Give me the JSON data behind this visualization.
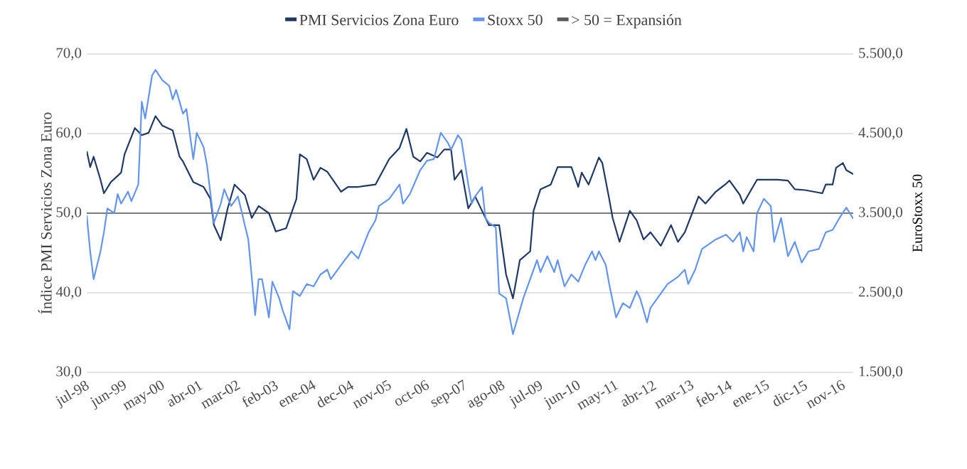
{
  "chart_data": {
    "type": "line",
    "ylabel": "Índice PMI Servicios Zona Euro",
    "y2label": "EuroStoxx 50",
    "xlim": [
      "1998-07",
      "2017-02"
    ],
    "xticks": [
      {
        "value": "1998-07",
        "label": "jul-98"
      },
      {
        "value": "1999-06",
        "label": "jun-99"
      },
      {
        "value": "2000-05",
        "label": "may-00"
      },
      {
        "value": "2001-04",
        "label": "abr-01"
      },
      {
        "value": "2002-03",
        "label": "mar-02"
      },
      {
        "value": "2003-02",
        "label": "feb-03"
      },
      {
        "value": "2004-01",
        "label": "ene-04"
      },
      {
        "value": "2004-12",
        "label": "dec-04"
      },
      {
        "value": "2005-11",
        "label": "nov-05"
      },
      {
        "value": "2006-10",
        "label": "oct-06"
      },
      {
        "value": "2007-09",
        "label": "sep-07"
      },
      {
        "value": "2008-08",
        "label": "ago-08"
      },
      {
        "value": "2009-07",
        "label": "jul-09"
      },
      {
        "value": "2010-06",
        "label": "jun-10"
      },
      {
        "value": "2011-05",
        "label": "may-11"
      },
      {
        "value": "2012-04",
        "label": "abr-12"
      },
      {
        "value": "2013-03",
        "label": "mar-13"
      },
      {
        "value": "2014-02",
        "label": "feb-14"
      },
      {
        "value": "2015-01",
        "label": "ene-15"
      },
      {
        "value": "2015-12",
        "label": "dic-15"
      },
      {
        "value": "2016-11",
        "label": "nov-16"
      }
    ],
    "ylim": [
      30,
      70
    ],
    "yticks": [
      {
        "value": 30,
        "label": "30,0"
      },
      {
        "value": 40,
        "label": "40,0"
      },
      {
        "value": 50,
        "label": "50,0"
      },
      {
        "value": 60,
        "label": "60,0"
      },
      {
        "value": 70,
        "label": "70,0"
      }
    ],
    "y2lim": [
      1500,
      5500
    ],
    "y2ticks": [
      {
        "value": 1500,
        "label": "1.500,0"
      },
      {
        "value": 2500,
        "label": "2.500,0"
      },
      {
        "value": 3500,
        "label": "3.500,0"
      },
      {
        "value": 4500,
        "label": "4.500,0"
      },
      {
        "value": 5500,
        "label": "5.500,0"
      }
    ],
    "grid": "y",
    "legend": "top",
    "ref_lines": [
      {
        "axis": "y",
        "value": 50,
        "label": "> 50 = Expansión",
        "color": "#595959"
      }
    ],
    "series": [
      {
        "name": "PMI Servicios Zona Euro",
        "color": "#203864",
        "x": [
          "1998-07",
          "1998-08",
          "1998-09",
          "1998-11",
          "1998-12",
          "1999-02",
          "1999-05",
          "1999-06",
          "1999-09",
          "1999-11",
          "2000-01",
          "2000-03",
          "2000-05",
          "2000-08",
          "2000-10",
          "2000-11",
          "2001-02",
          "2001-05",
          "2001-07",
          "2001-08",
          "2001-10",
          "2001-12",
          "2002-02",
          "2002-05",
          "2002-07",
          "2002-09",
          "2002-12",
          "2003-02",
          "2003-05",
          "2003-08",
          "2003-09",
          "2003-11",
          "2004-01",
          "2004-03",
          "2004-05",
          "2004-09",
          "2004-11",
          "2005-02",
          "2005-07",
          "2005-11",
          "2006-02",
          "2006-04",
          "2006-06",
          "2006-08",
          "2006-10",
          "2007-01",
          "2007-03",
          "2007-05",
          "2007-06",
          "2007-08",
          "2007-10",
          "2007-12",
          "2008-02",
          "2008-04",
          "2008-07",
          "2008-09",
          "2008-11",
          "2009-01",
          "2009-04",
          "2009-05",
          "2009-07",
          "2009-10",
          "2009-12",
          "2010-04",
          "2010-06",
          "2010-07",
          "2010-09",
          "2010-12",
          "2011-01",
          "2011-03",
          "2011-04",
          "2011-06",
          "2011-09",
          "2011-11",
          "2012-01",
          "2012-03",
          "2012-06",
          "2012-09",
          "2012-11",
          "2013-01",
          "2013-05",
          "2013-07",
          "2013-10",
          "2014-01",
          "2014-02",
          "2014-05",
          "2014-06",
          "2014-10",
          "2015-01",
          "2015-04",
          "2015-07",
          "2015-09",
          "2015-12",
          "2016-05",
          "2016-06",
          "2016-08",
          "2016-09",
          "2016-11",
          "2016-12",
          "2017-02"
        ],
        "values": [
          57.8,
          55.8,
          57.1,
          54.2,
          52.5,
          53.9,
          55.1,
          57.4,
          60.7,
          59.8,
          60.1,
          62.2,
          61.0,
          60.4,
          57.1,
          56.5,
          53.9,
          53.3,
          51.8,
          48.5,
          46.6,
          50.6,
          53.6,
          52.3,
          49.4,
          50.9,
          50.0,
          47.7,
          48.1,
          51.8,
          57.4,
          56.8,
          54.2,
          55.7,
          55.2,
          52.7,
          53.3,
          53.3,
          53.6,
          56.8,
          58.2,
          60.6,
          57.1,
          56.5,
          57.6,
          57.0,
          58.0,
          58.0,
          54.2,
          55.4,
          50.6,
          52.1,
          50.3,
          48.5,
          48.5,
          42.3,
          39.3,
          44.1,
          45.2,
          50.3,
          53.0,
          53.6,
          55.8,
          55.8,
          53.3,
          55.1,
          53.6,
          57.0,
          56.3,
          51.8,
          49.4,
          46.4,
          50.3,
          49.1,
          46.7,
          47.6,
          45.9,
          48.5,
          46.4,
          47.6,
          52.1,
          51.2,
          52.7,
          53.7,
          54.1,
          52.3,
          51.2,
          54.2,
          54.2,
          54.2,
          54.1,
          53.0,
          52.9,
          52.5,
          53.6,
          53.6,
          55.7,
          56.3,
          55.4,
          54.9
        ]
      },
      {
        "name": "Stoxx 50",
        "color": "#6495ed",
        "axis": "y2",
        "x": [
          "1998-07",
          "1998-08",
          "1998-09",
          "1998-11",
          "1998-12",
          "1999-01",
          "1999-03",
          "1999-04",
          "1999-05",
          "1999-07",
          "1999-08",
          "1999-10",
          "1999-11",
          "1999-12",
          "2000-02",
          "2000-03",
          "2000-05",
          "2000-07",
          "2000-08",
          "2000-09",
          "2000-11",
          "2000-12",
          "2001-02",
          "2001-03",
          "2001-05",
          "2001-06",
          "2001-08",
          "2001-10",
          "2001-11",
          "2002-01",
          "2002-03",
          "2002-04",
          "2002-06",
          "2002-07",
          "2002-08",
          "2002-09",
          "2002-10",
          "2002-12",
          "2003-01",
          "2003-03",
          "2003-04",
          "2003-06",
          "2003-07",
          "2003-09",
          "2003-11",
          "2004-01",
          "2004-03",
          "2004-05",
          "2004-06",
          "2004-09",
          "2004-12",
          "2005-02",
          "2005-05",
          "2005-07",
          "2005-08",
          "2005-11",
          "2006-02",
          "2006-03",
          "2006-05",
          "2006-08",
          "2006-10",
          "2006-12",
          "2007-02",
          "2007-04",
          "2007-05",
          "2007-07",
          "2007-08",
          "2007-10",
          "2007-11",
          "2007-12",
          "2008-02",
          "2008-03",
          "2008-04",
          "2008-06",
          "2008-07",
          "2008-09",
          "2008-11",
          "2009-01",
          "2009-02",
          "2009-04",
          "2009-06",
          "2009-07",
          "2009-09",
          "2009-11",
          "2009-12",
          "2010-02",
          "2010-04",
          "2010-06",
          "2010-08",
          "2010-10",
          "2010-11",
          "2010-12",
          "2011-02",
          "2011-03",
          "2011-05",
          "2011-07",
          "2011-09",
          "2011-11",
          "2011-12",
          "2012-02",
          "2012-03",
          "2012-05",
          "2012-08",
          "2012-11",
          "2013-01",
          "2013-02",
          "2013-04",
          "2013-06",
          "2013-08",
          "2013-10",
          "2014-01",
          "2014-03",
          "2014-05",
          "2014-06",
          "2014-07",
          "2014-09",
          "2014-10",
          "2014-12",
          "2015-02",
          "2015-03",
          "2015-05",
          "2015-07",
          "2015-09",
          "2015-11",
          "2016-01",
          "2016-04",
          "2016-06",
          "2016-08",
          "2016-10",
          "2016-12",
          "2017-01",
          "2017-02"
        ],
        "values": [
          3470,
          3020,
          2670,
          3020,
          3260,
          3560,
          3500,
          3740,
          3620,
          3770,
          3650,
          3860,
          4900,
          4690,
          5230,
          5300,
          5170,
          5100,
          4930,
          5050,
          4750,
          4810,
          4180,
          4510,
          4330,
          4100,
          3380,
          3620,
          3800,
          3590,
          3710,
          3530,
          3170,
          2700,
          2220,
          2670,
          2670,
          2190,
          2640,
          2430,
          2280,
          2040,
          2520,
          2460,
          2610,
          2580,
          2730,
          2790,
          2670,
          2850,
          3020,
          2930,
          3260,
          3410,
          3590,
          3680,
          3860,
          3620,
          3740,
          4040,
          4160,
          4180,
          4510,
          4390,
          4300,
          4480,
          4420,
          3860,
          3620,
          3710,
          3830,
          3440,
          3380,
          3320,
          2490,
          2430,
          1980,
          2280,
          2430,
          2670,
          2910,
          2760,
          2960,
          2760,
          2910,
          2580,
          2730,
          2640,
          2850,
          3020,
          2910,
          3020,
          2850,
          2610,
          2190,
          2370,
          2310,
          2520,
          2430,
          2130,
          2310,
          2430,
          2610,
          2700,
          2790,
          2610,
          2790,
          3050,
          3110,
          3170,
          3230,
          3140,
          3260,
          3020,
          3200,
          3020,
          3500,
          3680,
          3590,
          3140,
          3440,
          2960,
          3140,
          2880,
          3020,
          3050,
          3260,
          3290,
          3440,
          3570,
          3500,
          3430
        ]
      }
    ]
  }
}
